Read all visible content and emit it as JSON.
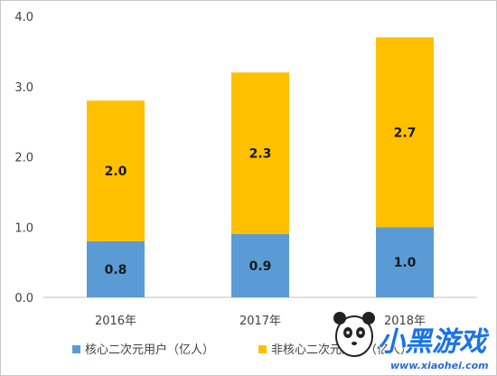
{
  "chart_data": {
    "type": "bar",
    "stacked": true,
    "categories": [
      "2016年",
      "2017年",
      "2018年"
    ],
    "series": [
      {
        "name": "核心二次元用户（亿人）",
        "color": "#5b9bd5",
        "values": [
          0.8,
          0.9,
          1.0
        ]
      },
      {
        "name": "非核心二次元用户（亿人）",
        "color": "#ffc000",
        "values": [
          2.0,
          2.3,
          2.7
        ]
      }
    ],
    "data_labels": [
      [
        "0.8",
        "0.9",
        "1.0"
      ],
      [
        "2.0",
        "2.3",
        "2.7"
      ]
    ],
    "ylim": [
      0,
      4.0
    ],
    "yticks": [
      "0.0",
      "1.0",
      "2.0",
      "3.0",
      "4.0"
    ],
    "grid": false,
    "legend_position": "bottom"
  },
  "watermark": {
    "text": "小黑游戏",
    "url": "www.xiaohei.com",
    "colors": {
      "main": "#1a73e8",
      "accent": "#e53935"
    }
  }
}
